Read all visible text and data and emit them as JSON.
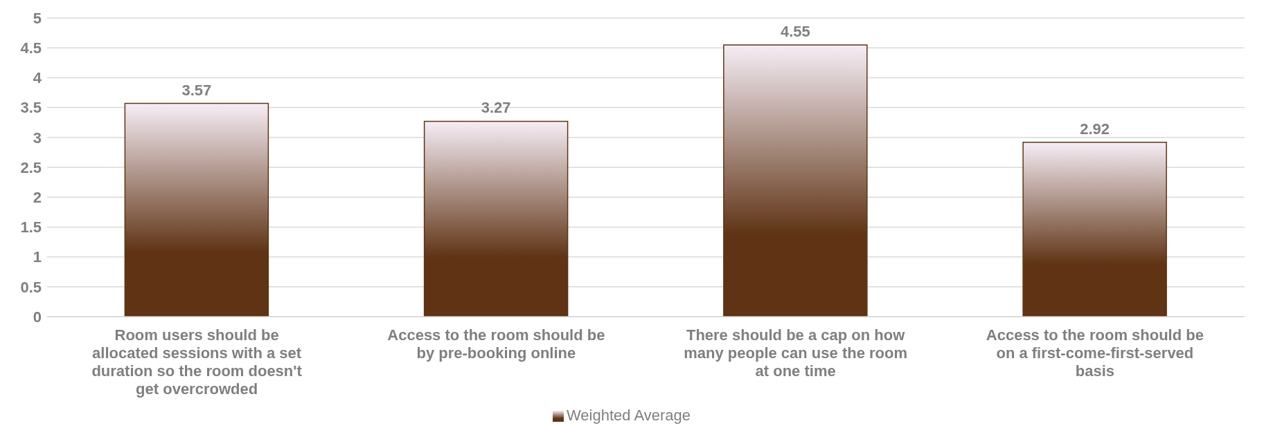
{
  "chart_data": {
    "type": "bar",
    "categories": [
      "Room users should be allocated sessions with a set duration so the room doesn't get overcrowded",
      "Access to the room should be by pre-booking online",
      "There should be a cap on how many people can use the room at one time",
      "Access to the room should be on a first-come-first-served basis"
    ],
    "series": [
      {
        "name": "Weighted Average",
        "color": "#5f3314",
        "values": [
          3.57,
          3.27,
          4.55,
          2.92
        ]
      }
    ],
    "ylim": [
      0,
      5
    ],
    "yticks": [
      0,
      0.5,
      1,
      1.5,
      2,
      2.5,
      3,
      3.5,
      4,
      4.5,
      5
    ],
    "grid": "y",
    "legend": "bottom",
    "data_labels": true
  }
}
